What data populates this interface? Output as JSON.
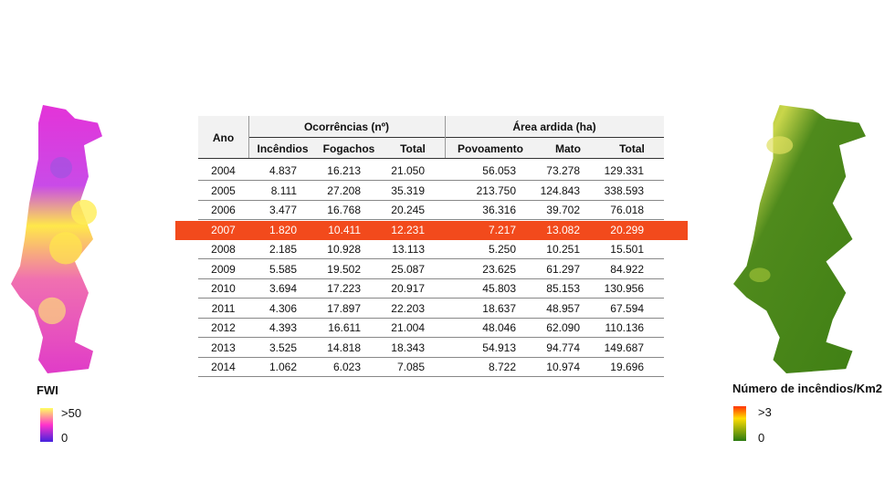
{
  "table": {
    "header_groups": [
      "Ocorrências (nº)",
      "Área ardida (ha)"
    ],
    "columns": [
      "Ano",
      "Incêndios",
      "Fogachos",
      "Total",
      "Povoamento",
      "Mato",
      "Total"
    ],
    "rows": [
      [
        "2004",
        "4.837",
        "16.213",
        "21.050",
        "56.053",
        "73.278",
        "129.331"
      ],
      [
        "2005",
        "8.111",
        "27.208",
        "35.319",
        "213.750",
        "124.843",
        "338.593"
      ],
      [
        "2006",
        "3.477",
        "16.768",
        "20.245",
        "36.316",
        "39.702",
        "76.018"
      ],
      [
        "2007",
        "1.820",
        "10.411",
        "12.231",
        "7.217",
        "13.082",
        "20.299"
      ],
      [
        "2008",
        "2.185",
        "10.928",
        "13.113",
        "5.250",
        "10.251",
        "15.501"
      ],
      [
        "2009",
        "5.585",
        "19.502",
        "25.087",
        "23.625",
        "61.297",
        "84.922"
      ],
      [
        "2010",
        "3.694",
        "17.223",
        "20.917",
        "45.803",
        "85.153",
        "130.956"
      ],
      [
        "2011",
        "4.306",
        "17.897",
        "22.203",
        "18.637",
        "48.957",
        "67.594"
      ],
      [
        "2012",
        "4.393",
        "16.611",
        "21.004",
        "48.046",
        "62.090",
        "110.136"
      ],
      [
        "2013",
        "3.525",
        "14.818",
        "18.343",
        "54.913",
        "94.774",
        "149.687"
      ],
      [
        "2014",
        "1.062",
        "6.023",
        "7.085",
        "8.722",
        "10.974",
        "19.696"
      ]
    ]
  },
  "left_map": {
    "title": "FWI",
    "legend_max": ">50",
    "legend_min": "0"
  },
  "right_map": {
    "title": "Número de incêndios/Km2",
    "legend_max": ">3",
    "legend_min": "0"
  }
}
